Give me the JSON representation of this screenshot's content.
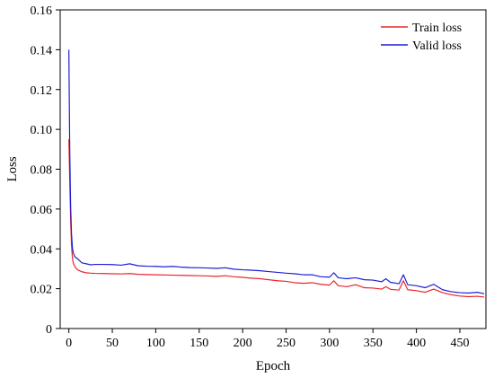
{
  "chart_data": {
    "type": "line",
    "xlabel": "Epoch",
    "ylabel": "Loss",
    "xlim": [
      -10,
      480
    ],
    "ylim": [
      0,
      0.16
    ],
    "x_ticks": [
      0,
      50,
      100,
      150,
      200,
      250,
      300,
      350,
      400,
      450
    ],
    "y_ticks": [
      0,
      0.02,
      0.04,
      0.06,
      0.08,
      0.1,
      0.12,
      0.14,
      0.16
    ],
    "y_tick_labels": [
      "0",
      "0.02",
      "0.04",
      "0.06",
      "0.08",
      "0.10",
      "0.12",
      "0.14",
      "0.16"
    ],
    "legend_position": "top-right",
    "grid": false,
    "series": [
      {
        "name": "Train loss",
        "color": "#e8262b",
        "x": [
          0,
          1,
          2,
          3,
          4,
          5,
          7,
          10,
          15,
          20,
          25,
          30,
          40,
          50,
          60,
          70,
          80,
          90,
          100,
          110,
          120,
          130,
          140,
          150,
          160,
          170,
          180,
          190,
          200,
          210,
          220,
          230,
          240,
          250,
          260,
          270,
          280,
          290,
          300,
          305,
          310,
          320,
          330,
          340,
          350,
          360,
          365,
          370,
          380,
          385,
          390,
          400,
          410,
          420,
          430,
          440,
          450,
          460,
          470,
          478
        ],
        "y": [
          0.095,
          0.075,
          0.055,
          0.042,
          0.036,
          0.033,
          0.031,
          0.0295,
          0.0285,
          0.028,
          0.0278,
          0.0277,
          0.0276,
          0.0275,
          0.0274,
          0.0276,
          0.0272,
          0.0271,
          0.027,
          0.0269,
          0.0268,
          0.0267,
          0.0266,
          0.0265,
          0.0264,
          0.0262,
          0.0265,
          0.026,
          0.0257,
          0.0253,
          0.025,
          0.0245,
          0.024,
          0.0237,
          0.023,
          0.0227,
          0.023,
          0.0222,
          0.0218,
          0.024,
          0.0215,
          0.021,
          0.022,
          0.0205,
          0.0203,
          0.0198,
          0.021,
          0.0197,
          0.0193,
          0.024,
          0.0195,
          0.019,
          0.0182,
          0.0198,
          0.018,
          0.017,
          0.0163,
          0.016,
          0.0162,
          0.0158
        ]
      },
      {
        "name": "Valid loss",
        "color": "#1f1fd6",
        "x": [
          0,
          1,
          2,
          3,
          4,
          5,
          7,
          10,
          15,
          20,
          25,
          30,
          40,
          50,
          60,
          70,
          80,
          90,
          100,
          110,
          120,
          130,
          140,
          150,
          160,
          170,
          180,
          190,
          200,
          210,
          220,
          230,
          240,
          250,
          260,
          270,
          280,
          290,
          300,
          305,
          310,
          320,
          330,
          340,
          350,
          360,
          365,
          370,
          380,
          385,
          390,
          400,
          410,
          420,
          430,
          440,
          450,
          460,
          470,
          478
        ],
        "y": [
          0.14,
          0.09,
          0.062,
          0.048,
          0.041,
          0.038,
          0.036,
          0.035,
          0.033,
          0.0325,
          0.032,
          0.0322,
          0.0322,
          0.0321,
          0.0318,
          0.0325,
          0.0315,
          0.0313,
          0.0312,
          0.031,
          0.0312,
          0.0308,
          0.0306,
          0.0305,
          0.0304,
          0.0302,
          0.0305,
          0.0298,
          0.0295,
          0.0293,
          0.029,
          0.0286,
          0.0282,
          0.0278,
          0.0275,
          0.027,
          0.027,
          0.026,
          0.0258,
          0.028,
          0.0255,
          0.025,
          0.0255,
          0.0245,
          0.0243,
          0.0235,
          0.025,
          0.0232,
          0.0225,
          0.027,
          0.022,
          0.0215,
          0.0205,
          0.0222,
          0.0195,
          0.0185,
          0.018,
          0.0178,
          0.0182,
          0.0175
        ]
      }
    ]
  }
}
